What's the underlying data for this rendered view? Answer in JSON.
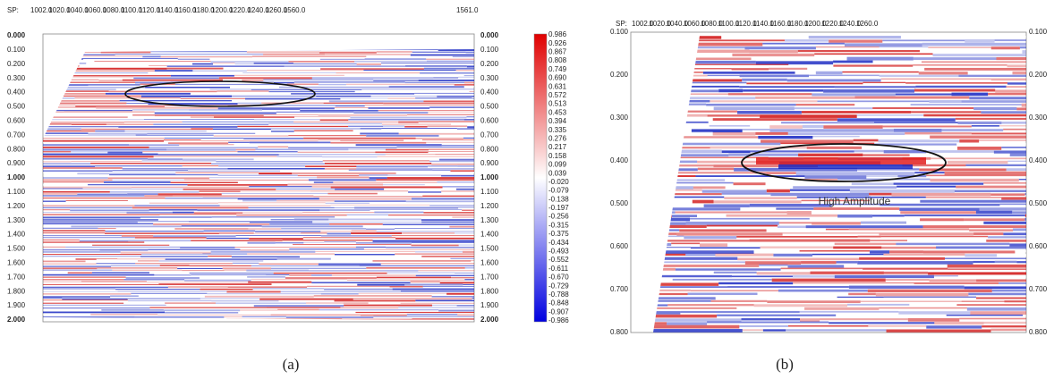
{
  "panel_a": {
    "sp_prefix": "SP:",
    "sp_ticks": [
      "1002.0",
      "1020.0",
      "1040.0",
      "1060.0",
      "1080.0",
      "1100.0",
      "1120.0",
      "1140.0",
      "1160.0",
      "1180.0",
      "1200.0",
      "1220.0",
      "1240.0",
      "1260.0",
      "1560.0"
    ],
    "sp_end": "1561.0",
    "time_ticks": [
      "0.000",
      "0.100",
      "0.200",
      "0.300",
      "0.400",
      "0.500",
      "0.600",
      "0.700",
      "0.800",
      "0.900",
      "1.000",
      "1.100",
      "1.200",
      "1.300",
      "1.400",
      "1.500",
      "1.600",
      "1.700",
      "1.800",
      "1.900",
      "2.000"
    ],
    "colorbar": [
      "0.986",
      "0.926",
      "0.867",
      "0.808",
      "0.749",
      "0.690",
      "0.631",
      "0.572",
      "0.513",
      "0.453",
      "0.394",
      "0.335",
      "0.276",
      "0.217",
      "0.158",
      "0.099",
      "0.039",
      "-0.020",
      "-0.079",
      "-0.138",
      "-0.197",
      "-0.256",
      "-0.315",
      "-0.375",
      "-0.434",
      "-0.493",
      "-0.552",
      "-0.611",
      "-0.670",
      "-0.729",
      "-0.788",
      "-0.848",
      "-0.907",
      "-0.986"
    ],
    "caption": "(a)"
  },
  "panel_b": {
    "sp_prefix": "SP:",
    "sp_ticks": [
      "1002.0",
      "1020.0",
      "1040.0",
      "1060.0",
      "1080.0",
      "1100.0",
      "1120.0",
      "1140.0",
      "1160.0",
      "1180.0",
      "1200.0",
      "1220.0",
      "1240.0",
      "1260.0"
    ],
    "time_ticks": [
      "0.100",
      "0.200",
      "0.300",
      "0.400",
      "0.500",
      "0.600",
      "0.700",
      "0.800"
    ],
    "annotation": "High Amplitude",
    "caption": "(b)"
  }
}
